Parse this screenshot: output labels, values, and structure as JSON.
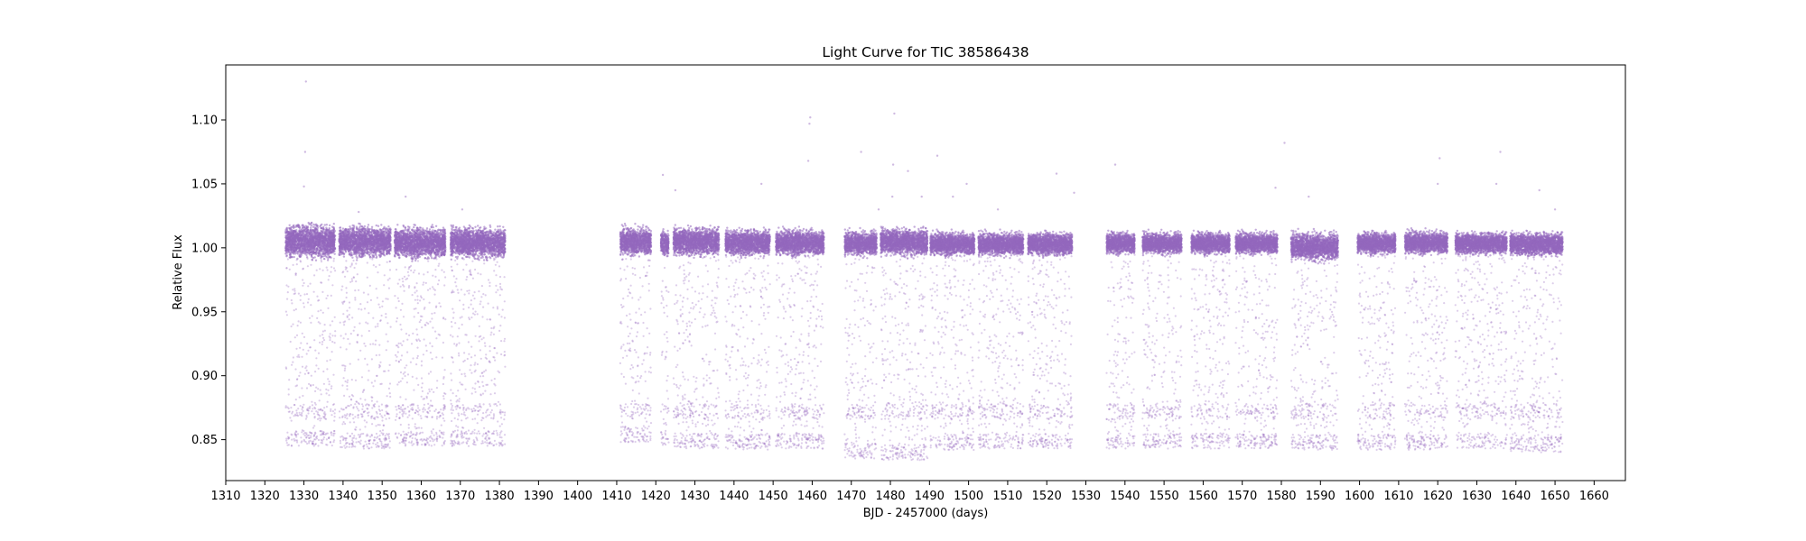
{
  "chart_data": {
    "type": "scatter",
    "title": "Light Curve for TIC 38586438",
    "xlabel": "BJD - 2457000 (days)",
    "ylabel": "Relative Flux",
    "xlim": [
      1310,
      1668
    ],
    "ylim": [
      0.818,
      1.143
    ],
    "xticks": [
      1310,
      1320,
      1330,
      1340,
      1350,
      1360,
      1370,
      1380,
      1390,
      1400,
      1410,
      1420,
      1430,
      1440,
      1450,
      1460,
      1470,
      1480,
      1490,
      1500,
      1510,
      1520,
      1530,
      1540,
      1550,
      1560,
      1570,
      1580,
      1590,
      1600,
      1610,
      1620,
      1630,
      1640,
      1650,
      1660
    ],
    "yticks": [
      0.85,
      0.9,
      0.95,
      1.0,
      1.05,
      1.1
    ],
    "ytick_labels": [
      "0.85",
      "0.90",
      "0.95",
      "1.00",
      "1.05",
      "1.10"
    ],
    "grid": false,
    "marker_color": "#9467bd",
    "series": [
      {
        "segments": [
          {
            "start": 1325.3,
            "end": 1338.0,
            "min": 0.845,
            "core": [
              0.992,
              1.018
            ]
          },
          {
            "start": 1339.0,
            "end": 1352.2,
            "min": 0.843,
            "core": [
              0.993,
              1.017
            ]
          },
          {
            "start": 1353.2,
            "end": 1366.2,
            "min": 0.845,
            "core": [
              0.992,
              1.016
            ]
          },
          {
            "start": 1367.5,
            "end": 1381.5,
            "min": 0.845,
            "core": [
              0.992,
              1.016
            ]
          },
          {
            "start": 1410.9,
            "end": 1418.8,
            "min": 0.848,
            "core": [
              0.994,
              1.016
            ]
          },
          {
            "start": 1421.3,
            "end": 1423.3,
            "min": 0.845,
            "core": [
              0.994,
              1.013
            ]
          },
          {
            "start": 1424.5,
            "end": 1436.2,
            "min": 0.843,
            "core": [
              0.994,
              1.016
            ]
          },
          {
            "start": 1437.8,
            "end": 1449.2,
            "min": 0.842,
            "core": [
              0.994,
              1.014
            ]
          },
          {
            "start": 1450.7,
            "end": 1463.0,
            "min": 0.843,
            "core": [
              0.994,
              1.014
            ]
          },
          {
            "start": 1468.3,
            "end": 1476.5,
            "min": 0.835,
            "core": [
              0.994,
              1.013
            ]
          },
          {
            "start": 1477.5,
            "end": 1489.5,
            "min": 0.834,
            "core": [
              0.994,
              1.015
            ]
          },
          {
            "start": 1490.2,
            "end": 1501.5,
            "min": 0.842,
            "core": [
              0.994,
              1.012
            ]
          },
          {
            "start": 1502.5,
            "end": 1514.0,
            "min": 0.843,
            "core": [
              0.994,
              1.012
            ]
          },
          {
            "start": 1515.2,
            "end": 1526.5,
            "min": 0.843,
            "core": [
              0.994,
              1.012
            ]
          },
          {
            "start": 1535.3,
            "end": 1542.5,
            "min": 0.843,
            "core": [
              0.995,
              1.012
            ]
          },
          {
            "start": 1544.5,
            "end": 1554.5,
            "min": 0.843,
            "core": [
              0.995,
              1.012
            ]
          },
          {
            "start": 1557.0,
            "end": 1566.8,
            "min": 0.843,
            "core": [
              0.995,
              1.012
            ]
          },
          {
            "start": 1568.3,
            "end": 1579.0,
            "min": 0.843,
            "core": [
              0.995,
              1.012
            ]
          },
          {
            "start": 1582.5,
            "end": 1594.5,
            "min": 0.842,
            "core": [
              0.99,
              1.012
            ]
          },
          {
            "start": 1599.5,
            "end": 1609.2,
            "min": 0.842,
            "core": [
              0.995,
              1.012
            ]
          },
          {
            "start": 1611.6,
            "end": 1622.5,
            "min": 0.842,
            "core": [
              0.995,
              1.013
            ]
          },
          {
            "start": 1624.5,
            "end": 1637.7,
            "min": 0.843,
            "core": [
              0.995,
              1.012
            ]
          },
          {
            "start": 1638.5,
            "end": 1652.0,
            "min": 0.84,
            "core": [
              0.994,
              1.012
            ]
          }
        ],
        "outliers": [
          [
            1330.5,
            1.13
          ],
          [
            1330.3,
            1.075
          ],
          [
            1330.0,
            1.048
          ],
          [
            1344.0,
            1.028
          ],
          [
            1356.0,
            1.04
          ],
          [
            1370.5,
            1.03
          ],
          [
            1421.8,
            1.057
          ],
          [
            1425.0,
            1.045
          ],
          [
            1447.0,
            1.05
          ],
          [
            1459.5,
            1.102
          ],
          [
            1459.3,
            1.097
          ],
          [
            1459.0,
            1.068
          ],
          [
            1472.5,
            1.075
          ],
          [
            1477.0,
            1.03
          ],
          [
            1481.0,
            1.105
          ],
          [
            1480.7,
            1.065
          ],
          [
            1480.5,
            1.04
          ],
          [
            1484.5,
            1.06
          ],
          [
            1488.0,
            1.04
          ],
          [
            1492.0,
            1.072
          ],
          [
            1496.0,
            1.04
          ],
          [
            1499.5,
            1.05
          ],
          [
            1507.5,
            1.03
          ],
          [
            1522.5,
            1.058
          ],
          [
            1527.0,
            1.043
          ],
          [
            1537.5,
            1.065
          ],
          [
            1580.8,
            1.082
          ],
          [
            1578.5,
            1.047
          ],
          [
            1587.0,
            1.04
          ],
          [
            1620.5,
            1.07
          ],
          [
            1620.0,
            1.05
          ],
          [
            1636.0,
            1.075
          ],
          [
            1635.0,
            1.05
          ],
          [
            1646.0,
            1.045
          ],
          [
            1650.0,
            1.03
          ]
        ]
      }
    ]
  }
}
